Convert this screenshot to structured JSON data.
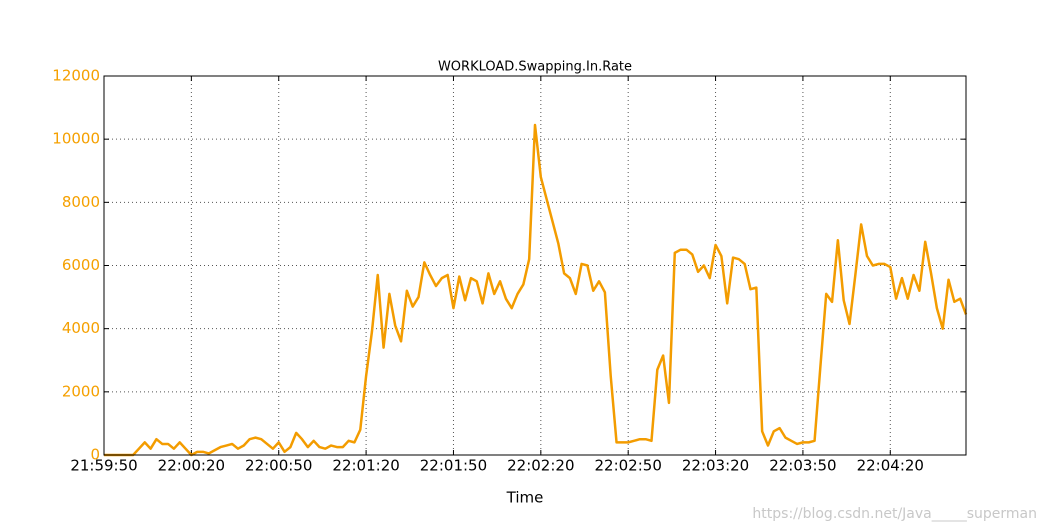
{
  "chart_data": {
    "type": "line",
    "title": "WORKLOAD.Swapping.In.Rate",
    "x_label": "Time",
    "watermark": "https://blog.csdn.net/Java_____superman",
    "x": [
      "21:59:50",
      "21:59:52",
      "21:59:54",
      "21:59:56",
      "21:59:58",
      "22:00:00",
      "22:00:02",
      "22:00:04",
      "22:00:06",
      "22:00:08",
      "22:00:10",
      "22:00:12",
      "22:00:14",
      "22:00:16",
      "22:00:18",
      "22:00:20",
      "22:00:22",
      "22:00:24",
      "22:00:26",
      "22:00:28",
      "22:00:30",
      "22:00:32",
      "22:00:34",
      "22:00:36",
      "22:00:38",
      "22:00:40",
      "22:00:42",
      "22:00:44",
      "22:00:46",
      "22:00:48",
      "22:00:50",
      "22:00:52",
      "22:00:54",
      "22:00:56",
      "22:00:58",
      "22:01:00",
      "22:01:02",
      "22:01:04",
      "22:01:06",
      "22:01:08",
      "22:01:10",
      "22:01:12",
      "22:01:14",
      "22:01:16",
      "22:01:18",
      "22:01:20",
      "22:01:22",
      "22:01:24",
      "22:01:26",
      "22:01:28",
      "22:01:30",
      "22:01:32",
      "22:01:34",
      "22:01:36",
      "22:01:38",
      "22:01:40",
      "22:01:42",
      "22:01:44",
      "22:01:46",
      "22:01:48",
      "22:01:50",
      "22:01:52",
      "22:01:54",
      "22:01:56",
      "22:01:58",
      "22:02:00",
      "22:02:02",
      "22:02:04",
      "22:02:06",
      "22:02:08",
      "22:02:10",
      "22:02:12",
      "22:02:14",
      "22:02:16",
      "22:02:18",
      "22:02:20",
      "22:02:22",
      "22:02:24",
      "22:02:26",
      "22:02:28",
      "22:02:30",
      "22:02:32",
      "22:02:34",
      "22:02:36",
      "22:02:38",
      "22:02:40",
      "22:02:42",
      "22:02:44",
      "22:02:46",
      "22:02:48",
      "22:02:50",
      "22:02:52",
      "22:02:54",
      "22:02:56",
      "22:02:58",
      "22:03:00",
      "22:03:02",
      "22:03:04",
      "22:03:06",
      "22:03:08",
      "22:03:10",
      "22:03:12",
      "22:03:14",
      "22:03:16",
      "22:03:18",
      "22:03:20",
      "22:03:22",
      "22:03:24",
      "22:03:26",
      "22:03:28",
      "22:03:30",
      "22:03:32",
      "22:03:34",
      "22:03:36",
      "22:03:38",
      "22:03:40",
      "22:03:42",
      "22:03:44",
      "22:03:46",
      "22:03:48",
      "22:03:50",
      "22:03:52",
      "22:03:54",
      "22:03:56",
      "22:03:58",
      "22:04:00",
      "22:04:02",
      "22:04:04",
      "22:04:06",
      "22:04:08",
      "22:04:10",
      "22:04:12",
      "22:04:14",
      "22:04:16",
      "22:04:18",
      "22:04:20",
      "22:04:22",
      "22:04:24",
      "22:04:26",
      "22:04:28",
      "22:04:30",
      "22:04:32",
      "22:04:34",
      "22:04:36",
      "22:04:38",
      "22:04:40",
      "22:04:42",
      "22:04:44",
      "22:04:46"
    ],
    "series": [
      {
        "name": "WORKLOAD.Swapping.In.Rate",
        "color": "#f39c00",
        "values": [
          0,
          0,
          0,
          0,
          0,
          0,
          200,
          400,
          200,
          500,
          350,
          350,
          200,
          400,
          200,
          0,
          100,
          100,
          50,
          150,
          250,
          300,
          350,
          200,
          300,
          500,
          550,
          500,
          350,
          200,
          400,
          100,
          250,
          700,
          500,
          250,
          450,
          250,
          200,
          300,
          250,
          250,
          450,
          400,
          800,
          2500,
          3900,
          5700,
          3400,
          5100,
          4100,
          3600,
          5200,
          4700,
          5000,
          6100,
          5700,
          5350,
          5600,
          5700,
          4650,
          5650,
          4900,
          5600,
          5500,
          4800,
          5750,
          5100,
          5500,
          4950,
          4650,
          5100,
          5400,
          6200,
          10450,
          8800,
          8100,
          7400,
          6700,
          5750,
          5600,
          5100,
          6050,
          6000,
          5200,
          5500,
          5150,
          2500,
          400,
          400,
          400,
          450,
          500,
          500,
          450,
          2700,
          3150,
          1650,
          6400,
          6500,
          6500,
          6350,
          5800,
          6000,
          5600,
          6650,
          6300,
          4800,
          6250,
          6200,
          6050,
          5250,
          5300,
          750,
          300,
          750,
          850,
          550,
          450,
          350,
          400,
          400,
          450,
          2800,
          5100,
          4850,
          6800,
          4900,
          4150,
          5700,
          7300,
          6300,
          6000,
          6050,
          6050,
          5950,
          4950,
          5600,
          4950,
          5700,
          5200,
          6750,
          5750,
          4650,
          4000,
          5550,
          4850,
          4950,
          4450
        ]
      }
    ],
    "xlim": [
      "21:59:50",
      "22:04:46"
    ],
    "xticks": [
      "21:59:50",
      "22:00:20",
      "22:00:50",
      "22:01:20",
      "22:01:50",
      "22:02:20",
      "22:02:50",
      "22:03:20",
      "22:03:50",
      "22:04:20"
    ],
    "ylim": [
      0,
      12000
    ],
    "yticks": [
      0,
      2000,
      4000,
      6000,
      8000,
      10000,
      12000
    ],
    "tick_label_color": "#f5a000",
    "grid": true
  }
}
